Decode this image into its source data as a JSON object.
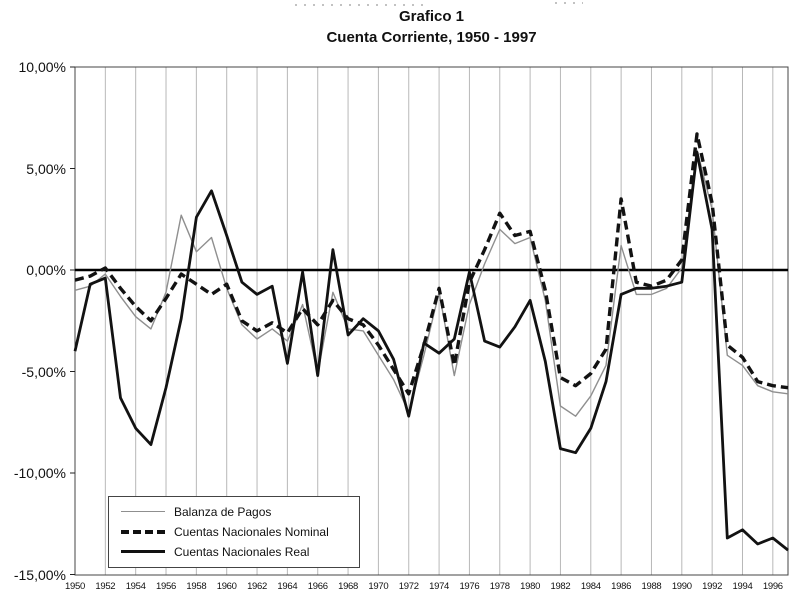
{
  "title": {
    "line1": "Grafico 1",
    "line2": "Cuenta Corriente, 1950 - 1997"
  },
  "legend": {
    "items": [
      {
        "label": "Balanza de Pagos",
        "style": "thin-gray-solid"
      },
      {
        "label": "Cuentas Nacionales Nominal",
        "style": "bold-dashed-black"
      },
      {
        "label": "Cuentas Nacionales Real",
        "style": "thick-solid-black"
      }
    ]
  },
  "colors": {
    "line_black": "#121212",
    "line_gray": "#8f8f8f",
    "grid": "#b8b8b8",
    "border": "#444444",
    "background": "#ffffff"
  },
  "chart_data": {
    "type": "line",
    "title": "Grafico 1",
    "subtitle": "Cuenta Corriente, 1950 - 1997",
    "xlabel": "",
    "ylabel": "",
    "xlim": [
      1950,
      1997
    ],
    "ylim": [
      -15,
      10
    ],
    "grid": "vertical-gridlines-every-2-years",
    "zero_line": true,
    "legend_position": "inside-bottom-left",
    "x": [
      1950,
      1951,
      1952,
      1953,
      1954,
      1955,
      1956,
      1957,
      1958,
      1959,
      1960,
      1961,
      1962,
      1963,
      1964,
      1965,
      1966,
      1967,
      1968,
      1969,
      1970,
      1971,
      1972,
      1973,
      1974,
      1975,
      1976,
      1977,
      1978,
      1979,
      1980,
      1981,
      1982,
      1983,
      1984,
      1985,
      1986,
      1987,
      1988,
      1989,
      1990,
      1991,
      1992,
      1993,
      1994,
      1995,
      1996,
      1997
    ],
    "x_tick_labels": [
      "1950",
      "1952",
      "1954",
      "1956",
      "1958",
      "1960",
      "1962",
      "1964",
      "1966",
      "1968",
      "1970",
      "1972",
      "1974",
      "1976",
      "1978",
      "1980",
      "1982",
      "1984",
      "1986",
      "1988",
      "1990",
      "1992",
      "1994",
      "1996"
    ],
    "y_tick_values": [
      10,
      5,
      0,
      -5,
      -10,
      -15
    ],
    "y_tick_labels": [
      "10,00%",
      "5,00%",
      "0,00%",
      "-5,00%",
      "-10,00%",
      "-15,00%"
    ],
    "series": [
      {
        "name": "Balanza de Pagos",
        "line": "thin gray solid",
        "values": [
          -1.0,
          -0.8,
          -0.2,
          -1.3,
          -2.3,
          -2.9,
          -1.1,
          2.7,
          0.9,
          1.6,
          -0.9,
          -2.7,
          -3.4,
          -2.9,
          -3.5,
          -1.7,
          -5.1,
          -1.1,
          -2.9,
          -3.0,
          -4.2,
          -5.4,
          -7.0,
          -4.2,
          -1.1,
          -5.2,
          -1.7,
          0.3,
          2.0,
          1.3,
          1.6,
          -1.5,
          -6.7,
          -7.2,
          -6.2,
          -4.7,
          1.2,
          -1.2,
          -1.2,
          -0.9,
          0.1,
          5.9,
          3.0,
          -4.2,
          -4.7,
          -5.7,
          -6.0,
          -6.1
        ]
      },
      {
        "name": "Cuentas Nacionales Nominal",
        "line": "bold dashed black",
        "values": [
          -0.5,
          -0.3,
          0.1,
          -0.9,
          -1.8,
          -2.5,
          -1.4,
          -0.2,
          -0.7,
          -1.2,
          -0.7,
          -2.5,
          -3.0,
          -2.6,
          -3.1,
          -1.9,
          -2.7,
          -1.5,
          -2.4,
          -2.7,
          -3.7,
          -4.9,
          -6.1,
          -3.7,
          -0.9,
          -4.7,
          -0.6,
          1.0,
          2.8,
          1.7,
          1.9,
          -1.0,
          -5.3,
          -5.7,
          -5.1,
          -3.9,
          3.5,
          -0.6,
          -0.8,
          -0.5,
          0.5,
          6.7,
          3.3,
          -3.7,
          -4.3,
          -5.5,
          -5.7,
          -5.8
        ]
      },
      {
        "name": "Cuentas Nacionales Real",
        "line": "thick solid black",
        "values": [
          -4.0,
          -0.7,
          -0.4,
          -6.3,
          -7.8,
          -8.6,
          -5.8,
          -2.4,
          2.6,
          3.9,
          1.7,
          -0.6,
          -1.2,
          -0.8,
          -4.6,
          -0.1,
          -5.2,
          1.0,
          -3.2,
          -2.4,
          -3.0,
          -4.4,
          -7.2,
          -3.6,
          -4.1,
          -3.4,
          -0.1,
          -3.5,
          -3.8,
          -2.8,
          -1.5,
          -4.5,
          -8.8,
          -9.0,
          -7.8,
          -5.5,
          -1.2,
          -0.9,
          -0.9,
          -0.8,
          -0.6,
          5.8,
          2.0,
          -13.2,
          -12.8,
          -13.5,
          -13.2,
          -13.8
        ]
      }
    ]
  }
}
